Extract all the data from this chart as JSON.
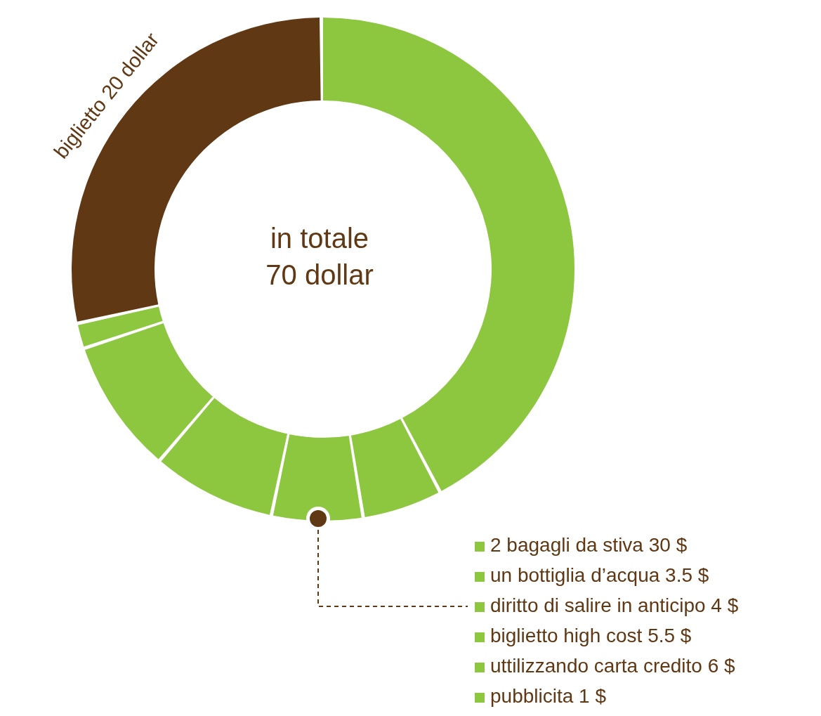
{
  "chart_data": {
    "type": "donut",
    "categories": [
      "2 bagagli da stiva 30 $",
      "un bottiglia d’acqua 3.5 $",
      "diritto di salire in anticipo 4 $",
      "biglietto high cost 5.5 $",
      "uttilizzando carta credito 6 $",
      "pubblicita 1 $",
      "biglietto 20 dollar"
    ],
    "values": [
      30,
      3.5,
      4,
      5.5,
      6,
      1,
      20
    ],
    "colors": [
      "#8dc63f",
      "#8dc63f",
      "#8dc63f",
      "#8dc63f",
      "#8dc63f",
      "#8dc63f",
      "#603813"
    ],
    "annotations": [
      "in totale",
      "70 dollar"
    ],
    "legend": "bottom right"
  }
}
